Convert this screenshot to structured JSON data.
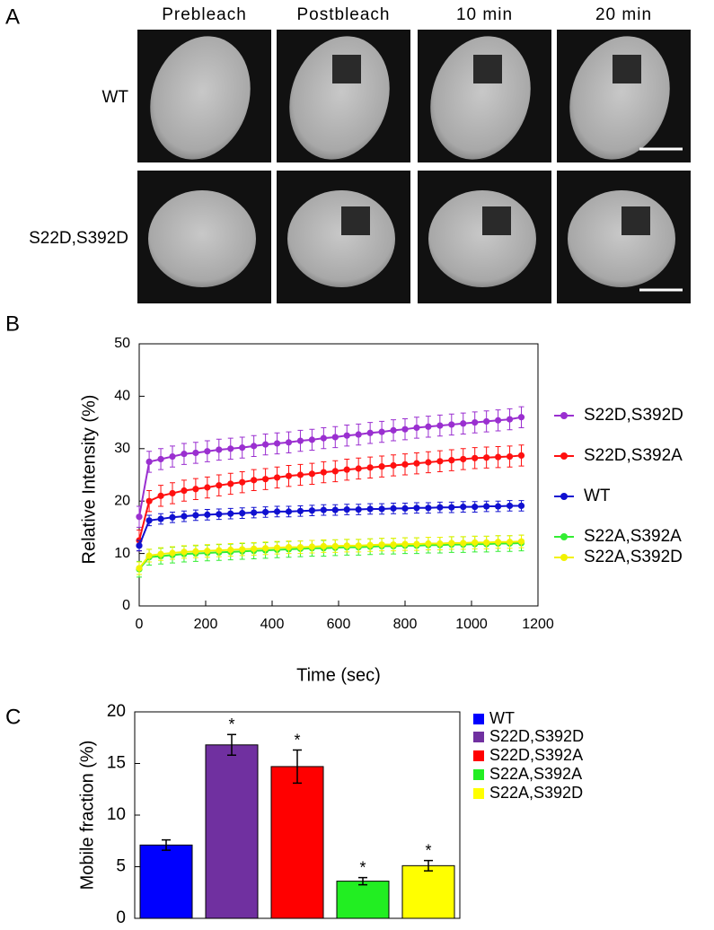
{
  "panel_labels": [
    "A",
    "B",
    "C"
  ],
  "images": {
    "columns": [
      "Prebleach",
      "Postbleach",
      "10 min",
      "20 min"
    ],
    "rows": [
      "WT",
      "S22D,S392D"
    ]
  },
  "chart_data": [
    {
      "type": "line",
      "xlabel": "Time (sec)",
      "ylabel": "Relative Intensity (%)",
      "x": [
        0,
        30,
        65,
        100,
        135,
        170,
        205,
        240,
        275,
        310,
        345,
        380,
        415,
        450,
        485,
        520,
        555,
        590,
        625,
        660,
        695,
        730,
        765,
        800,
        835,
        870,
        905,
        940,
        975,
        1010,
        1045,
        1080,
        1115,
        1150
      ],
      "xlim": [
        0,
        1200
      ],
      "xticks": [
        0,
        200,
        400,
        600,
        800,
        1000,
        1200
      ],
      "ylim": [
        0,
        50
      ],
      "yticks": [
        0,
        10,
        20,
        30,
        40,
        50
      ],
      "series": [
        {
          "name": "S22D,S392D",
          "color": "#9a2fd0",
          "error": 2,
          "values": [
            17,
            27.5,
            28,
            28.5,
            29,
            29.2,
            29.5,
            29.8,
            30,
            30.2,
            30.5,
            30.8,
            31,
            31.2,
            31.5,
            31.7,
            32,
            32.2,
            32.5,
            32.7,
            33,
            33.2,
            33.5,
            33.7,
            34,
            34.2,
            34.4,
            34.6,
            34.8,
            35,
            35.2,
            35.4,
            35.6,
            36
          ]
        },
        {
          "name": "S22D,S392A",
          "color": "#ff1010",
          "error": 2,
          "values": [
            12.5,
            20,
            21,
            21.5,
            22,
            22.3,
            22.6,
            23,
            23.3,
            23.6,
            24,
            24.2,
            24.5,
            24.8,
            25,
            25.2,
            25.5,
            25.7,
            26,
            26.2,
            26.4,
            26.6,
            26.8,
            27,
            27.2,
            27.4,
            27.6,
            27.8,
            28,
            28.2,
            28.3,
            28.4,
            28.5,
            28.7
          ]
        },
        {
          "name": "WT",
          "color": "#1010d0",
          "error": 1,
          "values": [
            11.5,
            16.3,
            16.6,
            16.9,
            17.1,
            17.3,
            17.4,
            17.5,
            17.6,
            17.7,
            17.8,
            17.9,
            18,
            18,
            18.1,
            18.2,
            18.3,
            18.3,
            18.4,
            18.4,
            18.5,
            18.5,
            18.6,
            18.6,
            18.7,
            18.7,
            18.8,
            18.8,
            18.9,
            18.9,
            19,
            19,
            19.1,
            19.1
          ]
        },
        {
          "name": "S22A,S392A",
          "color": "#33ee33",
          "error": 1.5,
          "values": [
            7,
            9.3,
            9.5,
            9.7,
            9.9,
            10,
            10.1,
            10.2,
            10.3,
            10.4,
            10.5,
            10.6,
            10.7,
            10.8,
            10.9,
            11,
            11,
            11.1,
            11.2,
            11.2,
            11.3,
            11.4,
            11.4,
            11.5,
            11.5,
            11.6,
            11.6,
            11.7,
            11.7,
            11.8,
            11.8,
            11.9,
            11.9,
            12
          ]
        },
        {
          "name": "S22A,S392D",
          "color": "#f2f200",
          "error": 1.2,
          "values": [
            7.2,
            9.6,
            9.9,
            10.1,
            10.3,
            10.4,
            10.5,
            10.6,
            10.7,
            10.8,
            10.9,
            11,
            11.1,
            11.2,
            11.2,
            11.3,
            11.4,
            11.4,
            11.5,
            11.5,
            11.6,
            11.7,
            11.7,
            11.8,
            11.8,
            11.9,
            11.9,
            12,
            12,
            12.1,
            12.1,
            12.2,
            12.2,
            12.3
          ]
        }
      ]
    },
    {
      "type": "bar",
      "ylabel": "Mobile fraction (%)",
      "categories": [
        "WT",
        "S22D,S392D",
        "S22D,S392A",
        "S22A,S392A",
        "S22A,S392D"
      ],
      "values": [
        7.1,
        16.8,
        14.7,
        3.6,
        5.1
      ],
      "errors": [
        0.5,
        1,
        1.6,
        0.35,
        0.5
      ],
      "annotations": [
        null,
        "*",
        "*",
        "*",
        "*"
      ],
      "colors": [
        "#0000ff",
        "#7030a0",
        "#ff0000",
        "#22ee22",
        "#ffff00"
      ],
      "ylim": [
        0,
        20
      ],
      "yticks": [
        0,
        5,
        10,
        15,
        20
      ]
    }
  ]
}
